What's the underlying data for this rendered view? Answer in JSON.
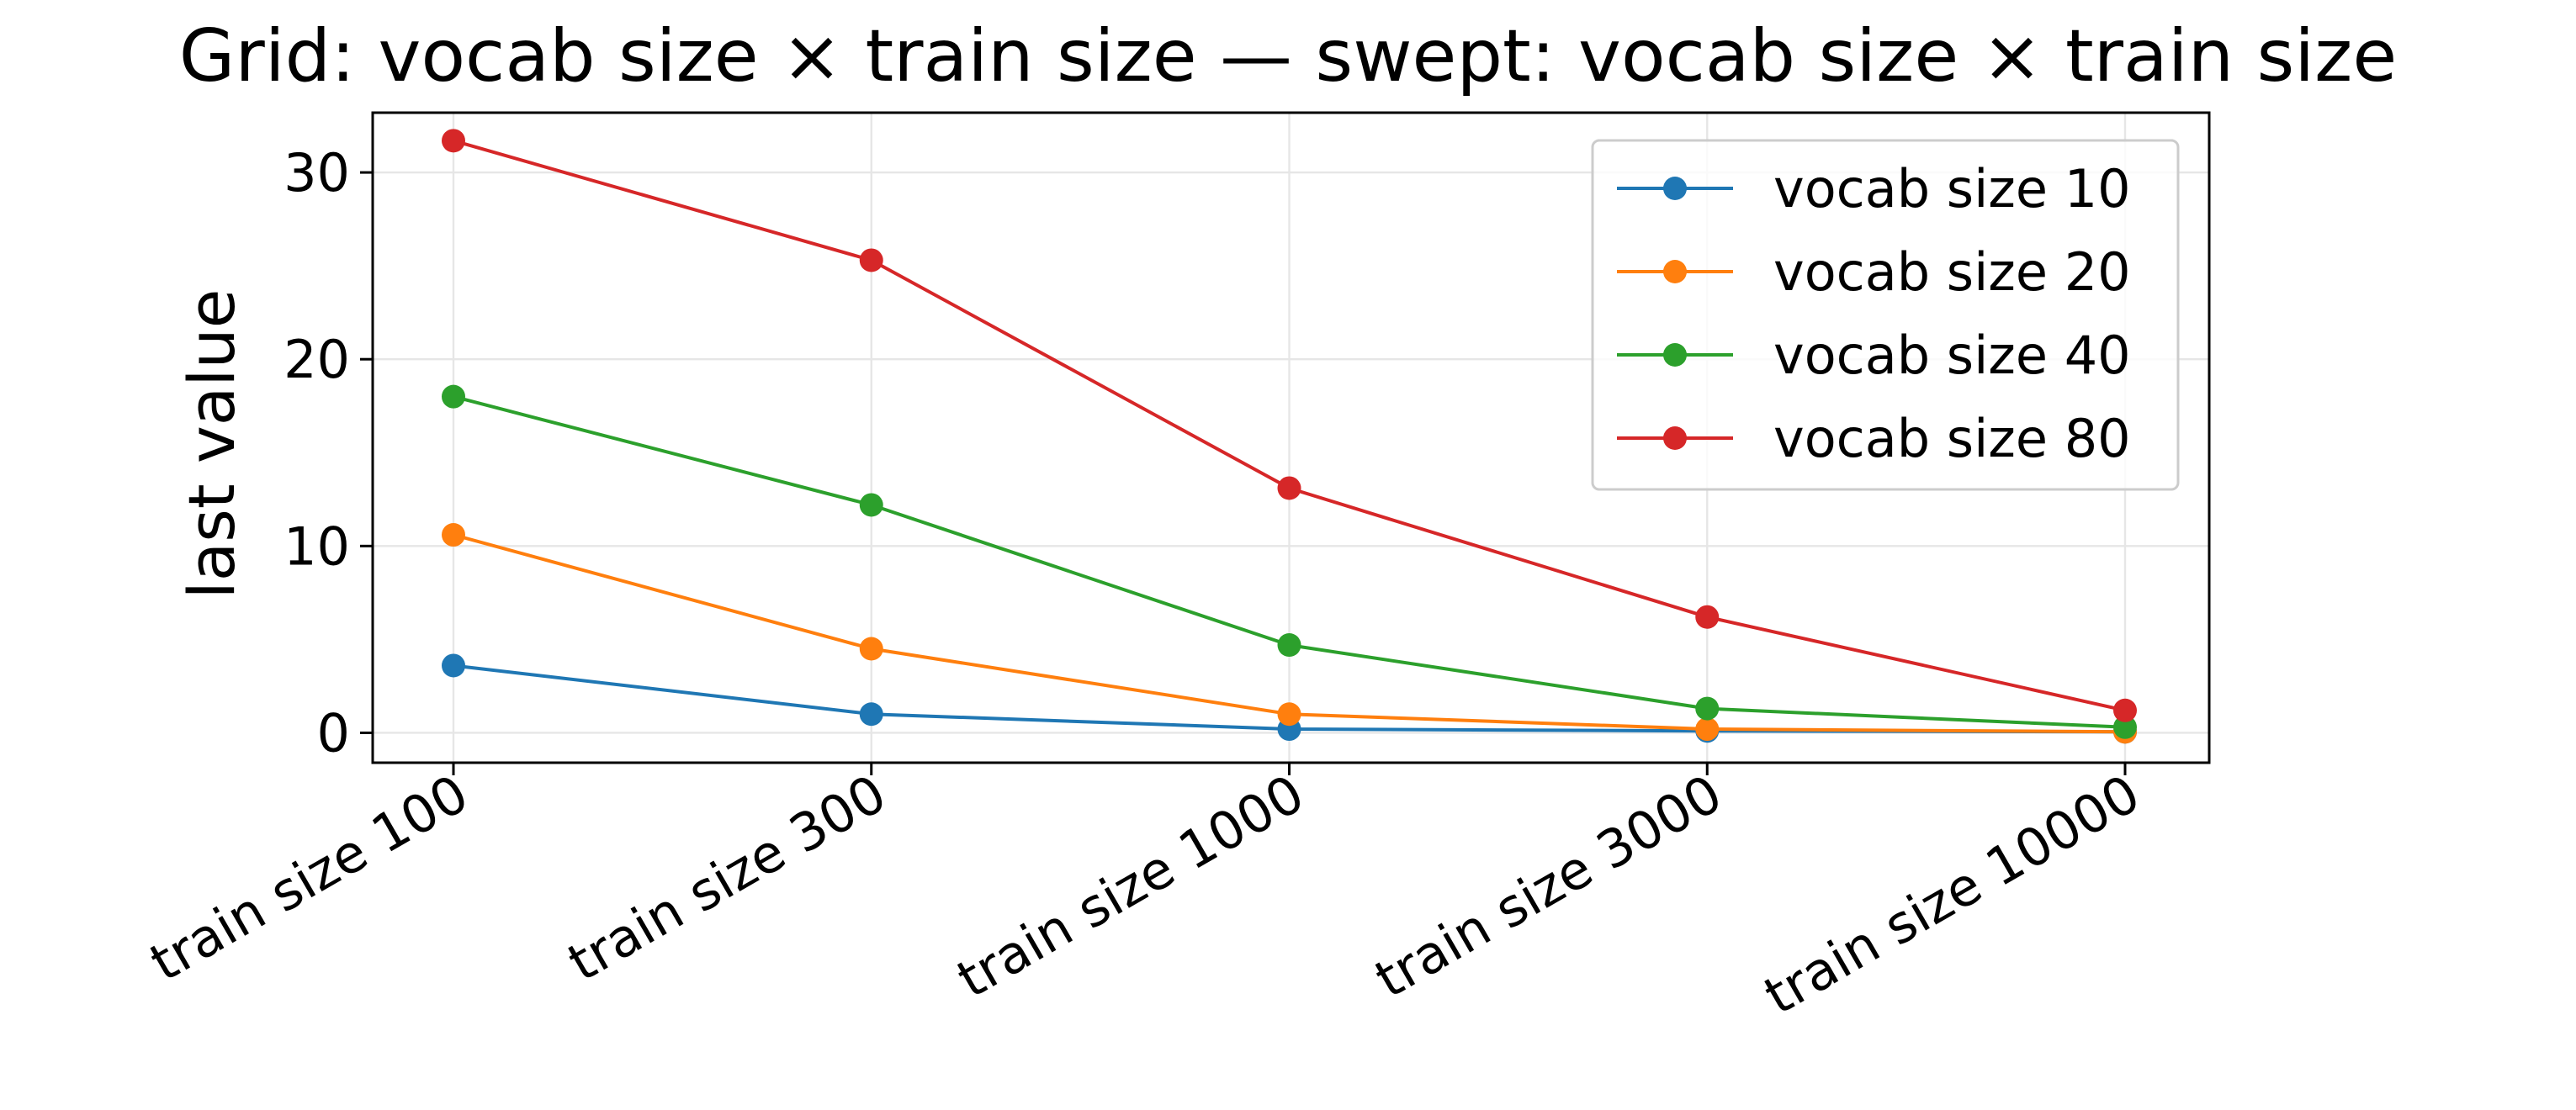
{
  "chart_data": {
    "type": "line",
    "title": "Grid: vocab size × train size — swept: vocab size × train size",
    "xlabel": "",
    "ylabel": "last value",
    "categories": [
      "train size 100",
      "train size 300",
      "train size 1000",
      "train size 3000",
      "train size 10000"
    ],
    "ylim": [
      -1.6,
      33.2
    ],
    "yticks": [
      0,
      10,
      20,
      30
    ],
    "grid": true,
    "legend_position": "top-right",
    "series": [
      {
        "name": "vocab size 10",
        "color": "#1f77b4",
        "values": [
          3.6,
          1.0,
          0.2,
          0.1,
          0.05
        ]
      },
      {
        "name": "vocab size 20",
        "color": "#ff7f0e",
        "values": [
          10.6,
          4.5,
          1.0,
          0.2,
          0.05
        ]
      },
      {
        "name": "vocab size 40",
        "color": "#2ca02c",
        "values": [
          18.0,
          12.2,
          4.7,
          1.3,
          0.3
        ]
      },
      {
        "name": "vocab size 80",
        "color": "#d62728",
        "values": [
          31.7,
          25.3,
          13.1,
          6.2,
          1.2
        ]
      }
    ]
  }
}
